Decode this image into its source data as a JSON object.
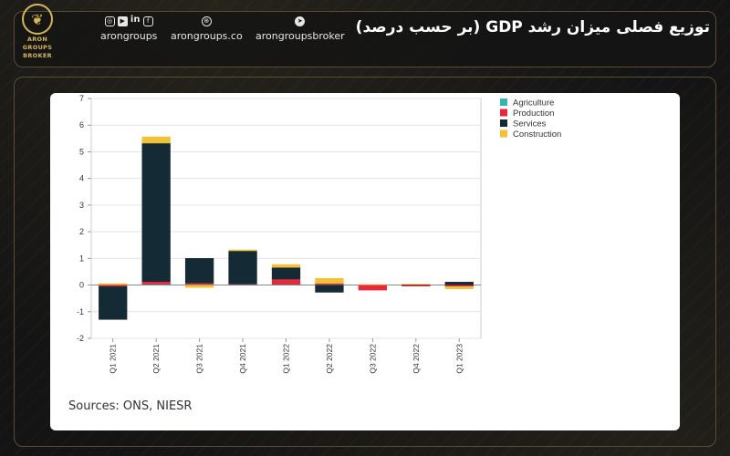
{
  "header": {
    "title": "توزیع فصلی میزان رشد GDP (بر حسب درصد)",
    "logo": {
      "line1": "ARON",
      "line2": "GROUPS",
      "line3": "BROKER"
    },
    "social": [
      {
        "label": "arongroups",
        "icons": [
          "instagram-icon",
          "youtube-icon",
          "linkedin-icon",
          "facebook-icon"
        ]
      },
      {
        "label": "arongroups.co",
        "icons": [
          "globe-icon"
        ]
      },
      {
        "label": "arongroupsbroker",
        "icons": [
          "telegram-icon"
        ]
      }
    ]
  },
  "sources": "Sources: ONS, NIESR",
  "chart_data": {
    "type": "bar",
    "stacked": true,
    "categories": [
      "Q1 2021",
      "Q2 2021",
      "Q3 2021",
      "Q4 2021",
      "Q1 2022",
      "Q2 2022",
      "Q3 2022",
      "Q4 2022",
      "Q1 2023"
    ],
    "ylim": [
      -2,
      7
    ],
    "yticks": [
      -2,
      -1,
      0,
      1,
      2,
      3,
      4,
      5,
      6,
      7
    ],
    "grid": true,
    "legend_position": "right",
    "series": [
      {
        "name": "Agriculture",
        "color": "#35b5ac",
        "values": [
          0.01,
          0.02,
          0.01,
          0.01,
          0.01,
          0.01,
          0.0,
          0.0,
          0.0
        ]
      },
      {
        "name": "Production",
        "color": "#e8263c",
        "values": [
          -0.05,
          0.1,
          0.05,
          0.02,
          0.2,
          0.05,
          -0.2,
          -0.05,
          -0.05
        ]
      },
      {
        "name": "Services",
        "color": "#142a35",
        "values": [
          -1.25,
          5.2,
          0.95,
          1.25,
          0.45,
          -0.28,
          0.0,
          0.02,
          0.12
        ]
      },
      {
        "name": "Construction",
        "color": "#f3c234",
        "values": [
          0.05,
          0.25,
          -0.1,
          0.05,
          0.12,
          0.2,
          0.03,
          0.02,
          -0.1
        ]
      }
    ]
  }
}
